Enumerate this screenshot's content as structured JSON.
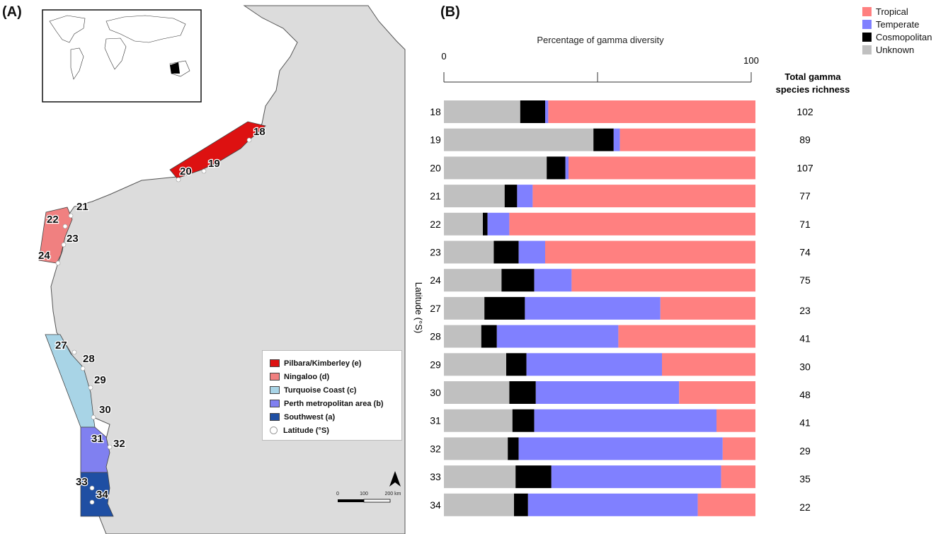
{
  "panels": {
    "a_label": "(A)",
    "b_label": "(B)"
  },
  "map": {
    "latitude_labels": [
      "18",
      "19",
      "20",
      "21",
      "22",
      "23",
      "24",
      "27",
      "28",
      "29",
      "30",
      "31",
      "32",
      "33",
      "34"
    ],
    "legend": [
      {
        "label": "Pilbara/Kimberley (e)",
        "color": "#dd1111"
      },
      {
        "label": "Ningaloo (d)",
        "color": "#f08080"
      },
      {
        "label": "Turquoise Coast (c)",
        "color": "#a8d4e6"
      },
      {
        "label": "Perth metropolitan area (b)",
        "color": "#8080f0"
      },
      {
        "label": "Southwest (a)",
        "color": "#1f4fa3"
      },
      {
        "label": "Latitude (°S)",
        "color": "#ffffff"
      }
    ],
    "scale": {
      "ticks": [
        "0",
        "100",
        "200 km"
      ]
    },
    "north_arrow": "north-arrow-icon"
  },
  "chart_data": {
    "type": "bar",
    "orientation": "horizontal",
    "stacked": true,
    "title": "Percentage of gamma diversity",
    "ylabel": "Latitude (°S)",
    "xlim": [
      0,
      100
    ],
    "x_ticks": [
      "0",
      "100"
    ],
    "categories": [
      "18",
      "19",
      "20",
      "21",
      "22",
      "23",
      "24",
      "27",
      "28",
      "29",
      "30",
      "31",
      "32",
      "33",
      "34"
    ],
    "series": [
      {
        "name": "Unknown",
        "color": "#c0c0c0",
        "values": [
          24.5,
          48,
          33,
          19.5,
          12.5,
          16,
          18.5,
          13,
          12,
          20,
          21,
          22,
          20.5,
          23,
          22.5
        ]
      },
      {
        "name": "Cosmopolitan",
        "color": "#000000",
        "values": [
          8,
          6.5,
          6,
          4,
          1.5,
          8,
          10.5,
          13,
          5,
          6.5,
          8.5,
          7,
          3.5,
          11.5,
          4.5
        ]
      },
      {
        "name": "Temperate",
        "color": "#8080ff",
        "values": [
          1,
          2,
          1,
          5,
          7,
          8.5,
          12,
          43.5,
          39,
          43.5,
          46,
          58.5,
          65.5,
          54.5,
          54.5
        ]
      },
      {
        "name": "Tropical",
        "color": "#ff8080",
        "values": [
          66.5,
          43.5,
          60,
          71.5,
          79,
          67.5,
          59,
          30.5,
          44,
          30,
          24.5,
          12.5,
          10.5,
          11,
          18.5
        ]
      }
    ],
    "legend_order": [
      "Tropical",
      "Temperate",
      "Cosmopolitan",
      "Unknown"
    ],
    "richness_title_line1": "Total gamma",
    "richness_title_line2": "species richness",
    "richness": [
      102,
      89,
      107,
      77,
      71,
      74,
      75,
      23,
      41,
      30,
      48,
      41,
      29,
      35,
      22
    ],
    "legend_position": "top-right"
  }
}
